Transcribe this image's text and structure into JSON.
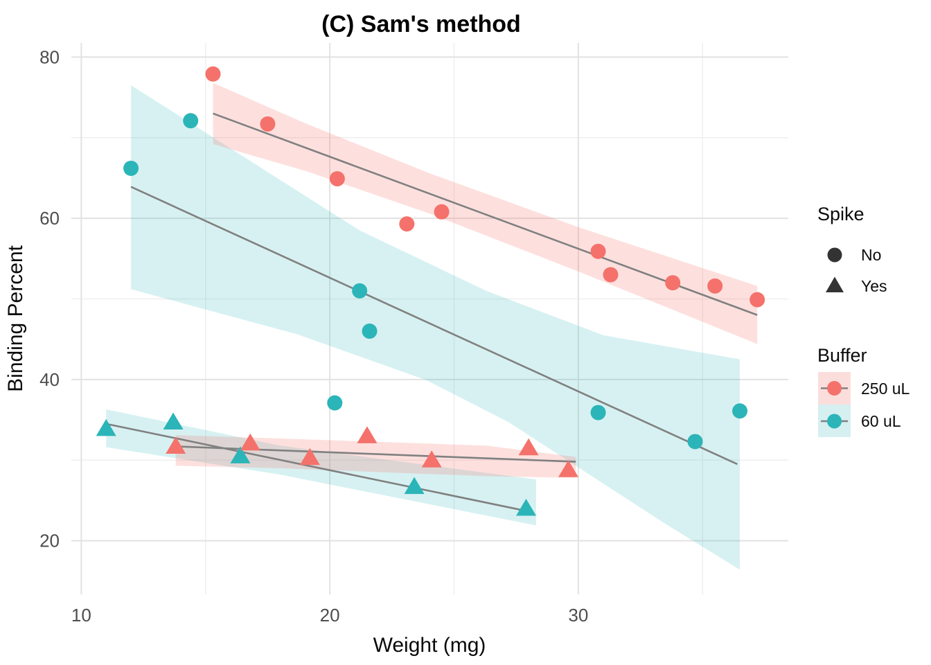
{
  "title": "(C) Sam's method",
  "legend": {
    "spike": {
      "title": "Spike",
      "glyph_color": "#333333",
      "items": [
        {
          "label": "No",
          "shape": "circle"
        },
        {
          "label": "Yes",
          "shape": "triangle"
        }
      ]
    },
    "buffer": {
      "title": "Buffer",
      "line_color": "#808080",
      "items": [
        {
          "label": "250 uL",
          "color": "#F4726B",
          "ribbon": "#FBDEDC"
        },
        {
          "label": "60 uL",
          "color": "#2BB5B8",
          "ribbon": "#D6EFF0"
        }
      ]
    }
  },
  "chart_data": {
    "type": "scatter",
    "title": "(C) Sam's method",
    "xlabel": "Weight (mg)",
    "ylabel": "Binding Percent",
    "xlim": [
      9.6,
      38.45
    ],
    "ylim": [
      13.35,
      81.75
    ],
    "x_ticks": [
      10,
      20,
      30
    ],
    "x_minor_ticks": [
      15,
      25,
      35
    ],
    "y_ticks": [
      20,
      40,
      60,
      80
    ],
    "y_minor_ticks": [
      30,
      50,
      70
    ],
    "grid": true,
    "legend_position": "right",
    "trend_line_color": "#808080",
    "grid_major_color": "#e2e2e2",
    "grid_minor_color": "#efefef",
    "series": [
      {
        "name": "60 uL / No spike",
        "buffer": "60 uL",
        "spike": "No",
        "shape": "circle",
        "color": "#2BB5B8",
        "ribbon_color": "rgba(43,181,184,0.19)",
        "points": [
          [
            12.0,
            66.2
          ],
          [
            14.4,
            72.1
          ],
          [
            20.2,
            37.1
          ],
          [
            21.2,
            51.0
          ],
          [
            21.6,
            46.0
          ],
          [
            30.8,
            35.9
          ],
          [
            34.7,
            32.3
          ],
          [
            36.5,
            36.1
          ]
        ],
        "trend": [
          [
            12.0,
            63.9
          ],
          [
            36.4,
            29.5
          ]
        ],
        "ribbon": [
          [
            12,
            76.5
          ],
          [
            21.2,
            58.5
          ],
          [
            26.3,
            51.0
          ],
          [
            31.0,
            45.5
          ],
          [
            36.5,
            42.5
          ],
          [
            36.5,
            16.4
          ],
          [
            33.5,
            22.1
          ],
          [
            27.2,
            34.7
          ],
          [
            23.9,
            39.9
          ],
          [
            18.7,
            45.6
          ],
          [
            12,
            51.2
          ]
        ]
      },
      {
        "name": "250 uL / No spike",
        "buffer": "250 uL",
        "spike": "No",
        "shape": "circle",
        "color": "#F4726B",
        "ribbon_color": "rgba(244,114,107,0.22)",
        "points": [
          [
            15.3,
            77.9
          ],
          [
            17.5,
            71.7
          ],
          [
            20.3,
            64.9
          ],
          [
            23.1,
            59.3
          ],
          [
            24.5,
            60.8
          ],
          [
            30.8,
            55.9
          ],
          [
            31.3,
            53.0
          ],
          [
            33.8,
            52.0
          ],
          [
            35.5,
            51.6
          ],
          [
            37.2,
            49.9
          ]
        ],
        "trend": [
          [
            15.3,
            73.0
          ],
          [
            37.2,
            48.0
          ]
        ],
        "ribbon": [
          [
            15.3,
            76.8
          ],
          [
            19,
            71.8
          ],
          [
            24,
            65.6
          ],
          [
            30,
            58.9
          ],
          [
            37.2,
            51.6
          ],
          [
            37.2,
            44.4
          ],
          [
            30,
            53.4
          ],
          [
            24,
            60.6
          ],
          [
            19,
            65.9
          ],
          [
            15.3,
            69.2
          ]
        ]
      },
      {
        "name": "60 uL / Spiked",
        "buffer": "60 uL",
        "spike": "Yes",
        "shape": "triangle",
        "color": "#2BB5B8",
        "ribbon_color": "rgba(43,181,184,0.19)",
        "points": [
          [
            11.0,
            33.9
          ],
          [
            13.7,
            34.7
          ],
          [
            16.4,
            30.5
          ],
          [
            23.4,
            26.7
          ],
          [
            27.9,
            24.0
          ]
        ],
        "trend": [
          [
            11.0,
            34.5
          ],
          [
            27.9,
            23.7
          ]
        ],
        "ribbon": [
          [
            11,
            36.3
          ],
          [
            18,
            31.8
          ],
          [
            28.3,
            27.6
          ],
          [
            28.3,
            21.9
          ],
          [
            18,
            28.2
          ],
          [
            11,
            31.6
          ]
        ]
      },
      {
        "name": "250 uL / Spiked",
        "buffer": "250 uL",
        "spike": "Yes",
        "shape": "triangle",
        "color": "#F4726B",
        "ribbon_color": "rgba(244,114,107,0.22)",
        "points": [
          [
            13.8,
            31.7
          ],
          [
            16.8,
            32.1
          ],
          [
            19.2,
            30.3
          ],
          [
            21.5,
            33.0
          ],
          [
            24.1,
            30.0
          ],
          [
            28.0,
            31.5
          ],
          [
            29.6,
            28.8
          ]
        ],
        "trend": [
          [
            13.8,
            31.7
          ],
          [
            29.9,
            29.8
          ]
        ],
        "ribbon": [
          [
            13.8,
            33.1
          ],
          [
            17.9,
            32.7
          ],
          [
            26.3,
            31.8
          ],
          [
            29.9,
            30.4
          ],
          [
            29.9,
            27.8
          ],
          [
            26.3,
            28.0
          ],
          [
            17.9,
            29.0
          ],
          [
            13.8,
            29.3
          ]
        ]
      }
    ]
  }
}
